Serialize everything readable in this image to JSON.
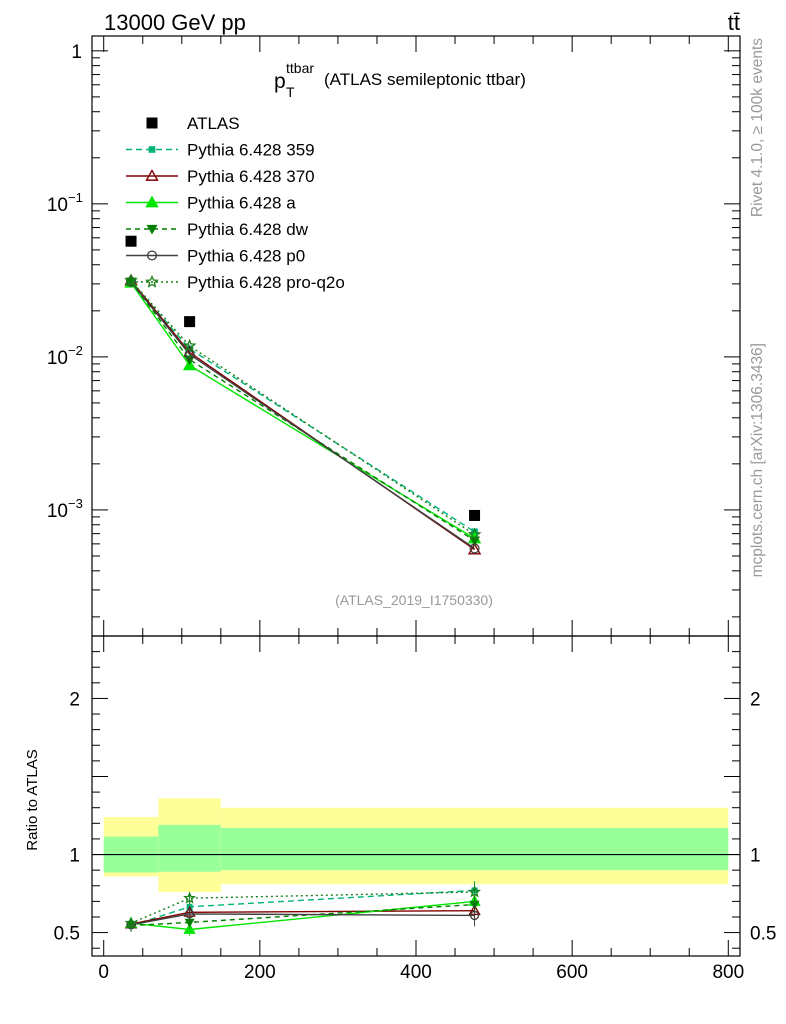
{
  "header": {
    "left": "13000 GeV pp",
    "right": "tt̄"
  },
  "side_labels": {
    "rivet": "Rivet 4.1.0, ≥ 100k events",
    "mcplots": "mcplots.cern.ch [arXiv:1306.3436]"
  },
  "chart_data": {
    "type": "line",
    "title_main": "p",
    "title_sub": "T",
    "title_sup": "ttbar",
    "title_rest": "(ATLAS semileptonic ttbar)",
    "analysis_label": "(ATLAS_2019_I1750330)",
    "x": [
      35,
      110,
      475
    ],
    "xlim": [
      -15,
      815
    ],
    "xticks": [
      0,
      200,
      400,
      600,
      800
    ],
    "xtick_labels": [
      "0",
      "200",
      "400",
      "600",
      "800"
    ],
    "main": {
      "yscale": "log",
      "ylim": [
        0.00015,
        1.25
      ],
      "yticks": [
        1,
        0.1,
        0.01,
        0.001
      ],
      "ytick_base": "10",
      "ytick_exps": [
        "",
        "−1",
        "−2",
        "−3"
      ],
      "ytick_first": "1",
      "data": {
        "name": "ATLAS",
        "color": "#000000",
        "points": [
          {
            "x": 35,
            "y": 0.057,
            "xlow": -15,
            "xhigh": 70
          },
          {
            "x": 110,
            "y": 0.017,
            "xlow": 70,
            "xhigh": 150
          },
          {
            "x": 475,
            "y": 0.00092,
            "xlow": 150,
            "xhigh": 800
          }
        ]
      }
    },
    "ratio": {
      "ylabel": "Ratio to ATLAS",
      "ylim": [
        0.35,
        2.4
      ],
      "yticks": [
        0.5,
        1,
        2
      ],
      "ytick_labels": [
        "0.5",
        "1",
        "2"
      ],
      "bands": [
        {
          "xlow": 0,
          "xhigh": 70,
          "inner": [
            0.885,
            1.115
          ],
          "outer": [
            0.86,
            1.24
          ]
        },
        {
          "xlow": 70,
          "xhigh": 150,
          "inner": [
            0.89,
            1.19
          ],
          "outer": [
            0.76,
            1.36
          ]
        },
        {
          "xlow": 150,
          "xhigh": 800,
          "inner": [
            0.9,
            1.17
          ],
          "outer": [
            0.81,
            1.3
          ]
        }
      ],
      "band_colors": {
        "inner": "#99ff99",
        "outer": "#ffff99"
      }
    },
    "series": [
      {
        "name": "Pythia 6.428 359",
        "color": "#00b37a",
        "dash": "6,4",
        "marker": "square-small",
        "values": [
          0.031,
          0.0113,
          0.00072
        ],
        "ratio": [
          0.545,
          0.665,
          0.77
        ],
        "ratio_err": [
          0.04,
          0.04,
          0.06
        ]
      },
      {
        "name": "Pythia 6.428 370",
        "color": "#800000",
        "dash": "",
        "marker": "triangle-open",
        "values": [
          0.0315,
          0.0107,
          0.00055
        ],
        "ratio": [
          0.555,
          0.63,
          0.64
        ],
        "ratio_err": [
          0.04,
          0.04,
          0.05
        ]
      },
      {
        "name": "Pythia 6.428 a",
        "color": "#00e600",
        "dash": "",
        "marker": "triangle",
        "values": [
          0.0305,
          0.0088,
          0.00065
        ],
        "ratio": [
          0.56,
          0.52,
          0.7
        ],
        "ratio_err": [
          0.04,
          0.04,
          0.06
        ]
      },
      {
        "name": "Pythia 6.428 dw",
        "color": "#008000",
        "dash": "5,4",
        "marker": "triangle-down",
        "values": [
          0.031,
          0.0096,
          0.00063
        ],
        "ratio": [
          0.545,
          0.565,
          0.68
        ],
        "ratio_err": [
          0.04,
          0.04,
          0.06
        ]
      },
      {
        "name": "Pythia 6.428 p0",
        "color": "#404040",
        "dash": "",
        "marker": "circle-open",
        "values": [
          0.031,
          0.0104,
          0.00056
        ],
        "ratio": [
          0.55,
          0.62,
          0.61
        ],
        "ratio_err": [
          0.04,
          0.04,
          0.07
        ]
      },
      {
        "name": "Pythia 6.428 pro-q2o",
        "color": "#1a801a",
        "dash": "2,3",
        "marker": "star-open",
        "values": [
          0.0315,
          0.0118,
          0.00069
        ],
        "ratio": [
          0.56,
          0.72,
          0.76
        ],
        "ratio_err": [
          0.04,
          0.04,
          0.06
        ]
      }
    ]
  }
}
